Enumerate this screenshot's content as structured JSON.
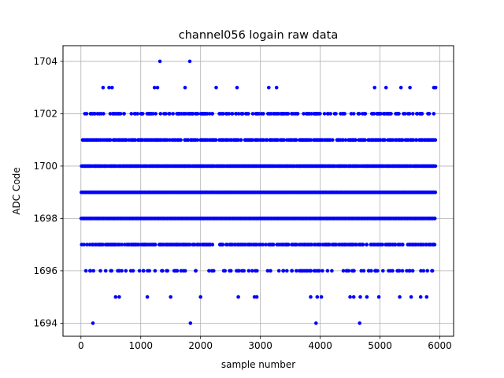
{
  "chart_data": {
    "type": "scatter",
    "title": "channel056 logain raw data",
    "xlabel": "sample number",
    "ylabel": "ADC Code",
    "xlim": [
      -300,
      6230
    ],
    "ylim": [
      1693.5,
      1704.6
    ],
    "xticks": [
      0,
      1000,
      2000,
      3000,
      4000,
      5000,
      6000
    ],
    "yticks": [
      1694,
      1696,
      1698,
      1700,
      1702,
      1704
    ],
    "xtick_labels": [
      "0",
      "1000",
      "2000",
      "3000",
      "4000",
      "5000",
      "6000"
    ],
    "ytick_labels": [
      "1694",
      "1696",
      "1698",
      "1700",
      "1702",
      "1704"
    ],
    "grid": true,
    "marker_color": "#0000ff",
    "n_samples": 5920,
    "level_density": {
      "1694": 0,
      "1695": 0,
      "1696": 0.25,
      "1697": 0.55,
      "1698": 1.0,
      "1699": 1.0,
      "1700": 0.95,
      "1701": 0.6,
      "1702": 0.35,
      "1703": 0,
      "1704": 0
    },
    "sparse_points": [
      {
        "x": 200,
        "y": 1694
      },
      {
        "x": 1830,
        "y": 1694
      },
      {
        "x": 3930,
        "y": 1694
      },
      {
        "x": 4660,
        "y": 1694
      },
      {
        "x": 580,
        "y": 1695
      },
      {
        "x": 640,
        "y": 1695
      },
      {
        "x": 1110,
        "y": 1695
      },
      {
        "x": 1500,
        "y": 1695
      },
      {
        "x": 2000,
        "y": 1695
      },
      {
        "x": 2630,
        "y": 1695
      },
      {
        "x": 2900,
        "y": 1695
      },
      {
        "x": 2940,
        "y": 1695
      },
      {
        "x": 3840,
        "y": 1695
      },
      {
        "x": 3950,
        "y": 1695
      },
      {
        "x": 4020,
        "y": 1695
      },
      {
        "x": 4500,
        "y": 1695
      },
      {
        "x": 4560,
        "y": 1695
      },
      {
        "x": 4670,
        "y": 1695
      },
      {
        "x": 4780,
        "y": 1695
      },
      {
        "x": 4980,
        "y": 1695
      },
      {
        "x": 5330,
        "y": 1695
      },
      {
        "x": 5520,
        "y": 1695
      },
      {
        "x": 5680,
        "y": 1695
      },
      {
        "x": 5780,
        "y": 1695
      },
      {
        "x": 370,
        "y": 1703
      },
      {
        "x": 470,
        "y": 1703
      },
      {
        "x": 520,
        "y": 1703
      },
      {
        "x": 1230,
        "y": 1703
      },
      {
        "x": 1280,
        "y": 1703
      },
      {
        "x": 1740,
        "y": 1703
      },
      {
        "x": 2260,
        "y": 1703
      },
      {
        "x": 2610,
        "y": 1703
      },
      {
        "x": 3140,
        "y": 1703
      },
      {
        "x": 3270,
        "y": 1703
      },
      {
        "x": 4910,
        "y": 1703
      },
      {
        "x": 5100,
        "y": 1703
      },
      {
        "x": 5350,
        "y": 1703
      },
      {
        "x": 5500,
        "y": 1703
      },
      {
        "x": 5900,
        "y": 1703
      },
      {
        "x": 5930,
        "y": 1703
      },
      {
        "x": 1320,
        "y": 1704
      },
      {
        "x": 1820,
        "y": 1704
      }
    ]
  }
}
